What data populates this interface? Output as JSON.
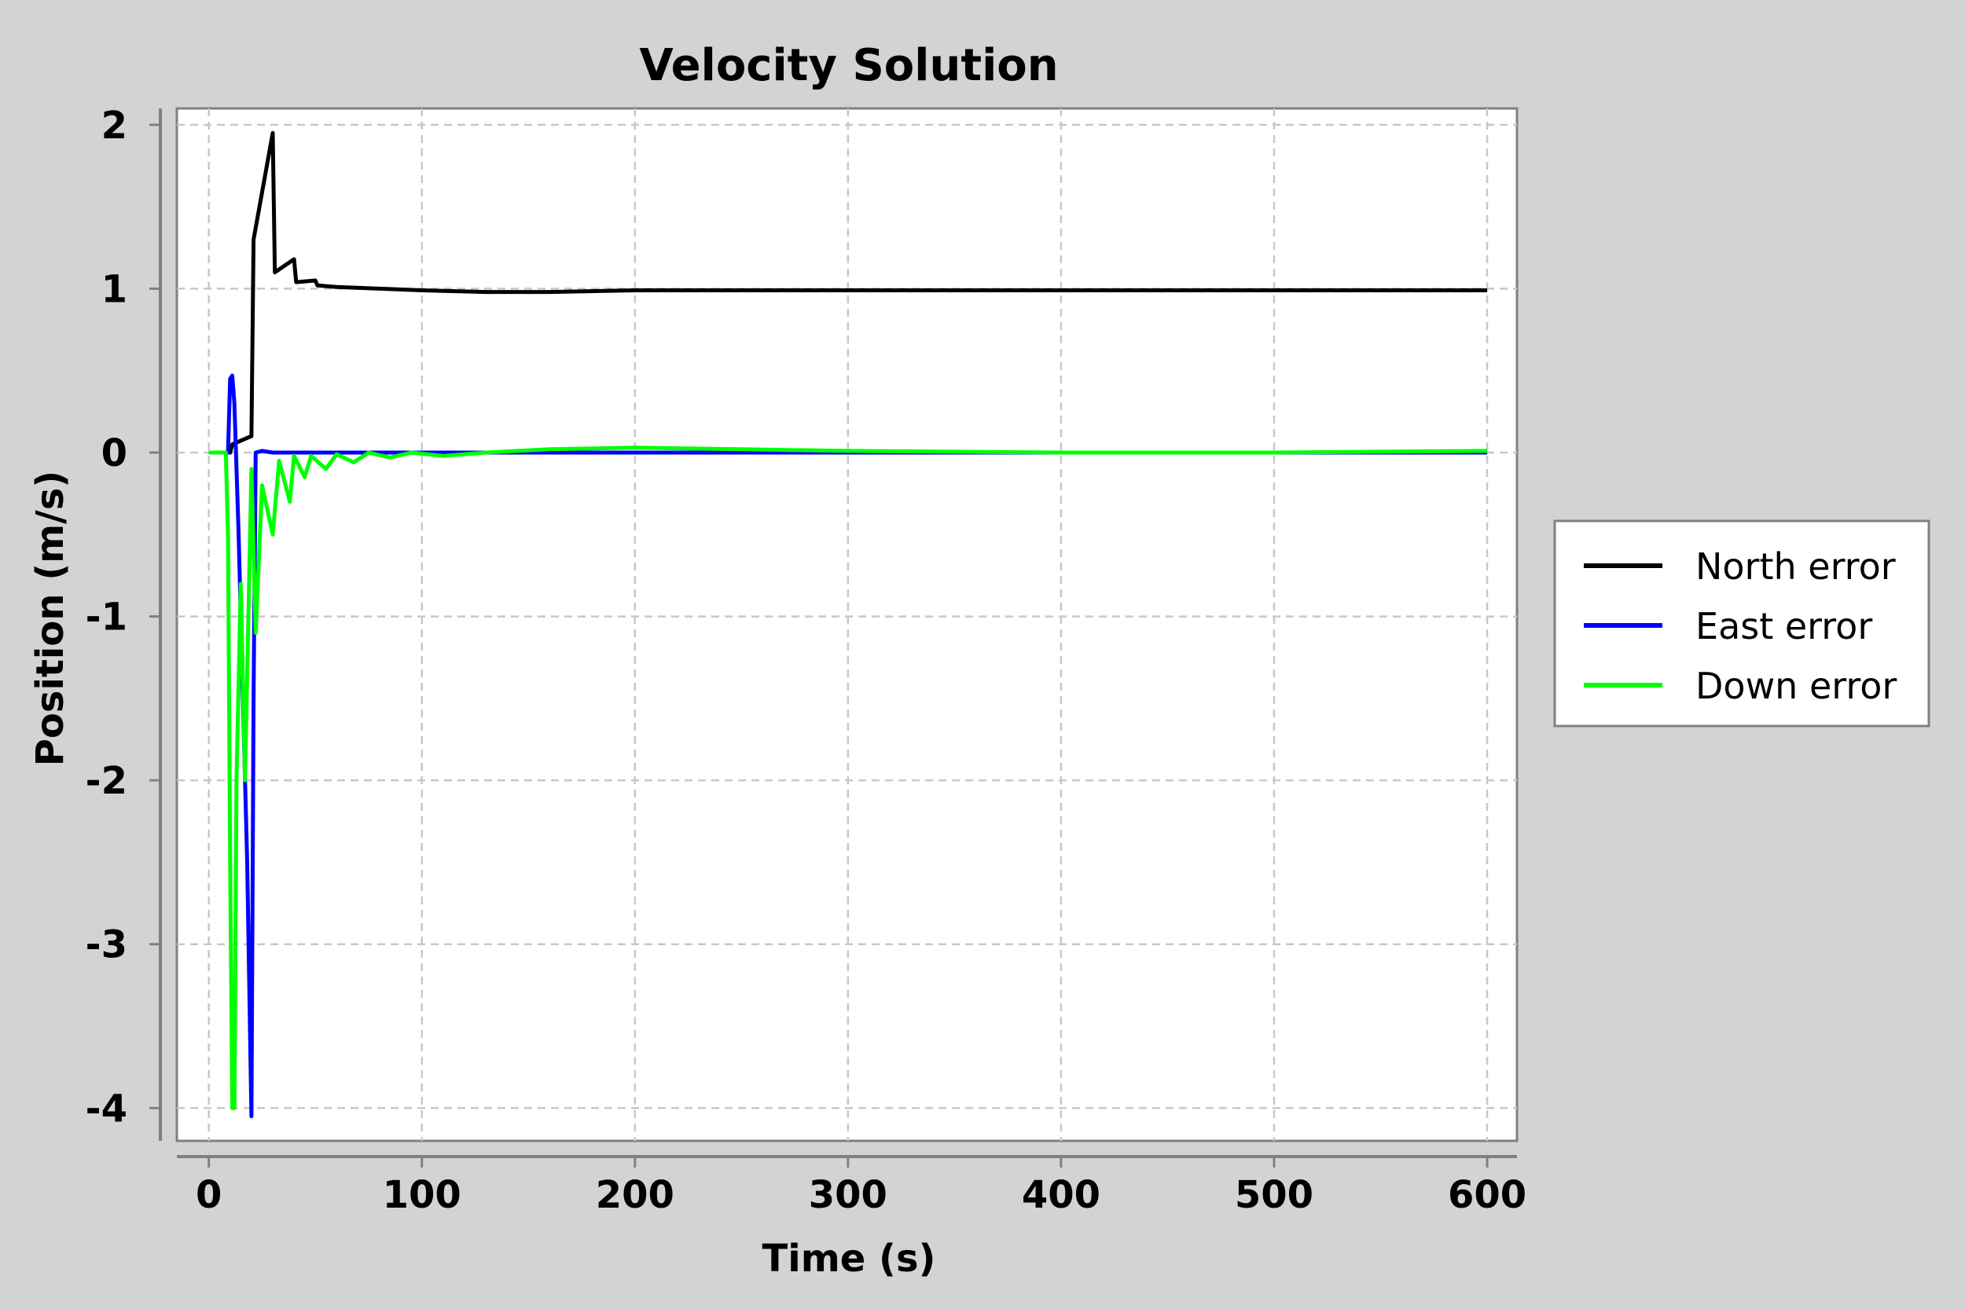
{
  "chart_data": {
    "type": "line",
    "title": "Velocity Solution",
    "xlabel": "Time (s)",
    "ylabel": "Position (m/s)",
    "xlim": [
      -15,
      614
    ],
    "ylim": [
      -4.2,
      2.1
    ],
    "xticks": [
      0,
      100,
      200,
      300,
      400,
      500,
      600
    ],
    "yticks": [
      2,
      1,
      0,
      -1,
      -2,
      -3,
      -4
    ],
    "grid": true,
    "legend_position": "right",
    "series": [
      {
        "name": "North error",
        "color": "#000000",
        "x": [
          0,
          10,
          11,
          20,
          21,
          30,
          31,
          40,
          41,
          50,
          51,
          60,
          80,
          100,
          130,
          160,
          200,
          300,
          400,
          500,
          600
        ],
        "y": [
          0.0,
          0.0,
          0.05,
          0.1,
          1.3,
          1.95,
          1.1,
          1.18,
          1.04,
          1.05,
          1.02,
          1.01,
          1.0,
          0.99,
          0.98,
          0.98,
          0.99,
          0.99,
          0.99,
          0.99,
          0.99
        ]
      },
      {
        "name": "East error",
        "color": "#0000ff",
        "x": [
          0,
          9,
          10,
          11,
          12,
          14,
          16,
          18,
          20,
          21,
          22,
          25,
          30,
          50,
          100,
          200,
          300,
          400,
          500,
          600
        ],
        "y": [
          0.0,
          0.0,
          0.45,
          0.47,
          0.3,
          -0.5,
          -1.5,
          -2.5,
          -4.05,
          -1.5,
          0.0,
          0.01,
          0.0,
          0.0,
          0.0,
          0.0,
          0.0,
          0.0,
          0.0,
          0.0
        ]
      },
      {
        "name": "Down error",
        "color": "#00ff00",
        "x": [
          0,
          8,
          9,
          10,
          11,
          12,
          13,
          15,
          17,
          20,
          22,
          25,
          30,
          33,
          38,
          40,
          45,
          48,
          55,
          60,
          68,
          75,
          85,
          95,
          110,
          130,
          160,
          200,
          250,
          300,
          400,
          500,
          600
        ],
        "y": [
          0.0,
          0.0,
          -0.5,
          -2.5,
          -4.0,
          -4.0,
          -2.0,
          -0.8,
          -2.0,
          -0.1,
          -1.1,
          -0.2,
          -0.5,
          -0.05,
          -0.3,
          -0.02,
          -0.15,
          -0.02,
          -0.1,
          -0.01,
          -0.06,
          0.0,
          -0.03,
          0.0,
          -0.02,
          0.0,
          0.02,
          0.03,
          0.02,
          0.01,
          0.0,
          0.0,
          0.01
        ]
      }
    ]
  }
}
